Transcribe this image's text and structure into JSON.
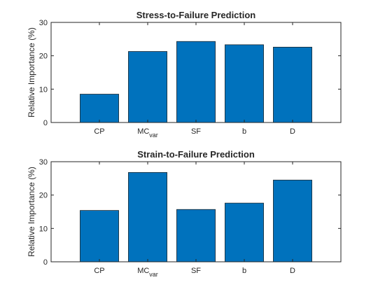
{
  "chart_data": [
    {
      "type": "bar",
      "title": "Stress-to-Failure Prediction",
      "xlabel": "",
      "ylabel": "Relative Importance (%)",
      "categories": [
        {
          "label": "CP",
          "sub": ""
        },
        {
          "label": "MC",
          "sub": "var"
        },
        {
          "label": "SF",
          "sub": ""
        },
        {
          "label": "b",
          "sub": ""
        },
        {
          "label": "D",
          "sub": ""
        }
      ],
      "values": [
        8.5,
        21.3,
        24.3,
        23.3,
        22.6
      ],
      "ylim": [
        0,
        30
      ],
      "yticks": [
        0,
        10,
        20,
        30
      ],
      "xlim": [
        0,
        6
      ],
      "grid": false,
      "color": "#0072BD"
    },
    {
      "type": "bar",
      "title": "Strain-to-Failure Prediction",
      "xlabel": "",
      "ylabel": "Relative Importance (%)",
      "categories": [
        {
          "label": "CP",
          "sub": ""
        },
        {
          "label": "MC",
          "sub": "var"
        },
        {
          "label": "SF",
          "sub": ""
        },
        {
          "label": "b",
          "sub": ""
        },
        {
          "label": "D",
          "sub": ""
        }
      ],
      "values": [
        15.4,
        26.8,
        15.7,
        17.6,
        24.5
      ],
      "ylim": [
        0,
        30
      ],
      "yticks": [
        0,
        10,
        20,
        30
      ],
      "xlim": [
        0,
        6
      ],
      "grid": false,
      "color": "#0072BD"
    }
  ]
}
